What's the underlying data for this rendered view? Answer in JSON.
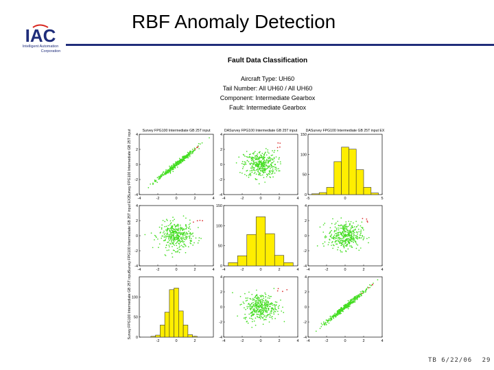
{
  "slide": {
    "title": "RBF Anomaly Detection",
    "footer_id": "TB 6/22/06",
    "page_number": "29",
    "colors": {
      "title_rule": "#1f2d7a",
      "logo_blue": "#1f2d7a",
      "logo_red": "#d8261f"
    }
  },
  "logo": {
    "letters": "IAC",
    "line1": "Intelligent Automation",
    "line2": "Corporation"
  },
  "chart_data": {
    "type": "scatter",
    "title": "Fault Data Classification",
    "subtitle_lines": [
      "Aircraft Type: UH60",
      "Tail Number: All UH60 / All UH60",
      "Component: Intermediate Gearbox",
      "Fault: Intermediate Gearbox"
    ],
    "column_titles": [
      "Survey FPG100 Intermediate GB 25T input",
      "DASurvey FPG100 Intermediate GB 25T input",
      "DASurvey FPG100 Intermediate GB 25T input EX"
    ],
    "row_labels": [
      "Survey FPG100 Intermediate GB 25T input",
      "Survey FPG100 Intermediate GB 25T input EX2",
      "Survey FPG100 Intermediate GB 25T input"
    ],
    "colors": {
      "points": "#44dd22",
      "outliers": "#dd3333",
      "bars": "#ffee00",
      "bar_edge": "#333333"
    },
    "panels": [
      {
        "row": 0,
        "col": 0,
        "kind": "scatter",
        "pattern": "diagonal",
        "xlim": [
          -4,
          4
        ],
        "ylim": [
          -4,
          4
        ],
        "xticks": [
          "-4",
          "-2",
          "0",
          "2",
          "4"
        ],
        "yticks": [
          "4",
          "2",
          "0",
          "-2",
          "-4"
        ]
      },
      {
        "row": 0,
        "col": 1,
        "kind": "scatter",
        "pattern": "cloud",
        "xlim": [
          -4,
          4
        ],
        "ylim": [
          -4,
          4
        ],
        "xticks": [
          "-4",
          "-2",
          "0",
          "2",
          "4"
        ],
        "yticks": [
          "4",
          "2",
          "0",
          "-2",
          "-4"
        ]
      },
      {
        "row": 0,
        "col": 2,
        "kind": "histogram",
        "xlim": [
          -5,
          5
        ],
        "ylim": [
          0,
          150
        ],
        "xticks": [
          "-5",
          "0",
          "5"
        ],
        "yticks": [
          "150",
          "100",
          "50",
          "0"
        ],
        "bins": [
          -4.0,
          -3.0,
          -2.0,
          -1.0,
          0.0,
          1.0,
          2.0,
          3.0,
          4.0
        ],
        "values": [
          2,
          5,
          18,
          82,
          118,
          113,
          62,
          18,
          4
        ]
      },
      {
        "row": 1,
        "col": 0,
        "kind": "scatter",
        "pattern": "cloud",
        "xlim": [
          -4,
          4
        ],
        "ylim": [
          -4,
          4
        ],
        "xticks": [
          "-4",
          "-2",
          "0",
          "2",
          "4"
        ],
        "yticks": [
          "4",
          "2",
          "0",
          "-2",
          "-4"
        ]
      },
      {
        "row": 1,
        "col": 1,
        "kind": "histogram",
        "xlim": [
          -4,
          4
        ],
        "ylim": [
          0,
          150
        ],
        "xticks": [
          "-4",
          "-2",
          "0",
          "2",
          "4"
        ],
        "yticks": [
          "150",
          "100",
          "50",
          "0"
        ],
        "bins": [
          -3.0,
          -2.0,
          -1.0,
          0.0,
          1.0,
          2.0,
          3.0
        ],
        "values": [
          8,
          25,
          78,
          122,
          80,
          26,
          8
        ]
      },
      {
        "row": 1,
        "col": 2,
        "kind": "scatter",
        "pattern": "cloud",
        "xlim": [
          -4,
          4
        ],
        "ylim": [
          -4,
          4
        ],
        "xticks": [
          "-4",
          "-2",
          "0",
          "2",
          "4"
        ],
        "yticks": [
          "4",
          "2",
          "0",
          "-2",
          "-4"
        ]
      },
      {
        "row": 2,
        "col": 0,
        "kind": "histogram",
        "xlim": [
          -4,
          4
        ],
        "ylim": [
          0,
          150
        ],
        "xticks": [
          "-2",
          "0",
          "2"
        ],
        "yticks": [
          "100",
          "50",
          "0"
        ],
        "bins": [
          -2.5,
          -2.0,
          -1.5,
          -1.0,
          -0.5,
          0.0,
          0.5,
          1.0,
          1.5,
          2.0
        ],
        "values": [
          2,
          5,
          30,
          62,
          118,
          122,
          65,
          30,
          6,
          2
        ]
      },
      {
        "row": 2,
        "col": 1,
        "kind": "scatter",
        "pattern": "cloud",
        "xlim": [
          -4,
          4
        ],
        "ylim": [
          -4,
          4
        ],
        "xticks": [
          "-4",
          "-2",
          "0",
          "2",
          "4"
        ],
        "yticks": [
          "4",
          "2",
          "0",
          "-2",
          "-4"
        ]
      },
      {
        "row": 2,
        "col": 2,
        "kind": "scatter",
        "pattern": "diagonal",
        "xlim": [
          -4,
          4
        ],
        "ylim": [
          -4,
          4
        ],
        "xticks": [
          "-4",
          "-2",
          "0",
          "2",
          "4"
        ],
        "yticks": [
          "4",
          "2",
          "0",
          "-2",
          "-4"
        ]
      }
    ]
  }
}
